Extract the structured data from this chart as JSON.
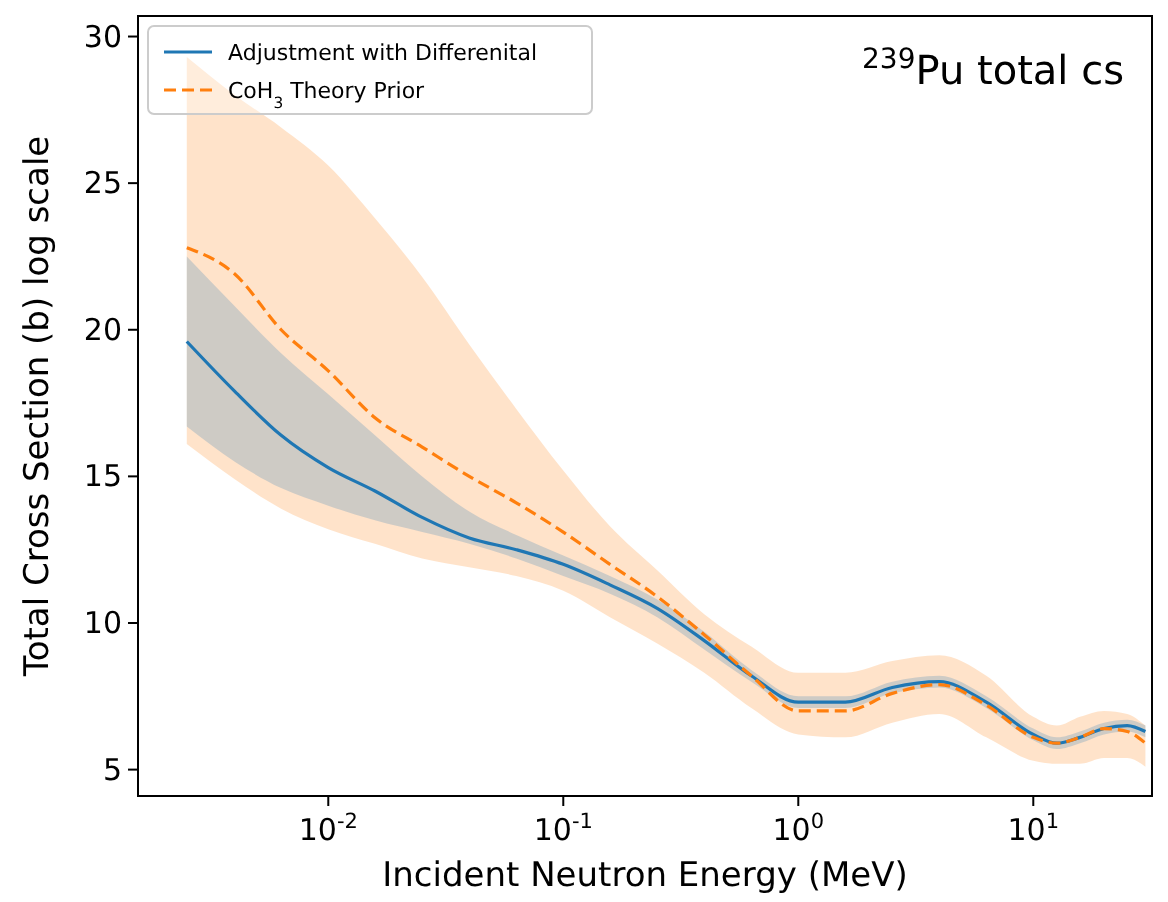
{
  "chart_data": {
    "type": "line",
    "xlabel": "Incident Neutron Energy (MeV)",
    "ylabel": "Total Cross Section (b) log scale",
    "annotations": [
      "$^{239}$Pu total cs"
    ],
    "log": "x",
    "xlim": [
      0.00155,
      32
    ],
    "ylim": [
      4.1,
      30.7
    ],
    "xticks": [
      {
        "value": 0.01,
        "label": "10$^{-2}$"
      },
      {
        "value": 0.1,
        "label": "10$^{-1}$"
      },
      {
        "value": 1,
        "label": "10$^{0}$"
      },
      {
        "value": 10,
        "label": "10$^{1}$"
      }
    ],
    "yticks": [
      5,
      10,
      15,
      20,
      25,
      30
    ],
    "grid": false,
    "legend": "top left",
    "x": [
      0.0025,
      0.004,
      0.0063,
      0.01,
      0.0158,
      0.0251,
      0.0398,
      0.0631,
      0.1,
      0.158,
      0.251,
      0.398,
      0.631,
      1,
      1.585,
      2.512,
      3.98,
      6.31,
      10,
      12.6,
      15.8,
      20,
      25.1,
      30
    ],
    "series": [
      {
        "name": "Adjustment with Differenital",
        "color": "#1f77b4",
        "line_style": "solid",
        "values": [
          19.6,
          17.9,
          16.4,
          15.3,
          14.5,
          13.6,
          12.9,
          12.5,
          12.0,
          11.3,
          10.5,
          9.4,
          8.2,
          7.3,
          7.3,
          7.8,
          8.0,
          7.3,
          6.2,
          5.9,
          6.1,
          6.4,
          6.5,
          6.3
        ],
        "lower": [
          16.7,
          15.5,
          14.6,
          14.0,
          13.5,
          13.1,
          12.7,
          12.2,
          11.6,
          11.0,
          10.2,
          9.1,
          8.0,
          7.1,
          7.1,
          7.6,
          7.8,
          7.1,
          6.0,
          5.7,
          5.9,
          6.2,
          6.3,
          6.1
        ],
        "upper": [
          22.5,
          20.8,
          19.2,
          17.8,
          16.4,
          15.0,
          13.8,
          13.0,
          12.3,
          11.6,
          10.8,
          9.7,
          8.4,
          7.5,
          7.5,
          8.0,
          8.2,
          7.5,
          6.4,
          6.1,
          6.3,
          6.6,
          6.7,
          6.5
        ]
      },
      {
        "name": "CoH$_{3}$ Theory Prior",
        "color": "#ff7f0e",
        "line_style": "dashed",
        "values": [
          22.8,
          21.9,
          20.0,
          18.6,
          17.0,
          16.0,
          15.0,
          14.1,
          13.1,
          12.0,
          10.9,
          9.6,
          8.2,
          7.0,
          7.0,
          7.6,
          7.9,
          7.2,
          6.1,
          5.9,
          6.1,
          6.4,
          6.3,
          5.9
        ],
        "lower": [
          16.1,
          14.9,
          13.9,
          13.2,
          12.7,
          12.2,
          11.9,
          11.6,
          11.1,
          10.2,
          9.3,
          8.3,
          7.1,
          6.2,
          6.1,
          6.6,
          6.9,
          6.1,
          5.3,
          5.2,
          5.2,
          5.4,
          5.4,
          5.1
        ],
        "upper": [
          29.3,
          28.0,
          26.9,
          25.6,
          23.8,
          21.8,
          19.5,
          17.3,
          15.2,
          13.3,
          11.8,
          10.3,
          9.2,
          8.3,
          8.3,
          8.7,
          8.9,
          8.2,
          6.8,
          6.5,
          6.8,
          7.0,
          6.9,
          6.5
        ]
      }
    ]
  }
}
